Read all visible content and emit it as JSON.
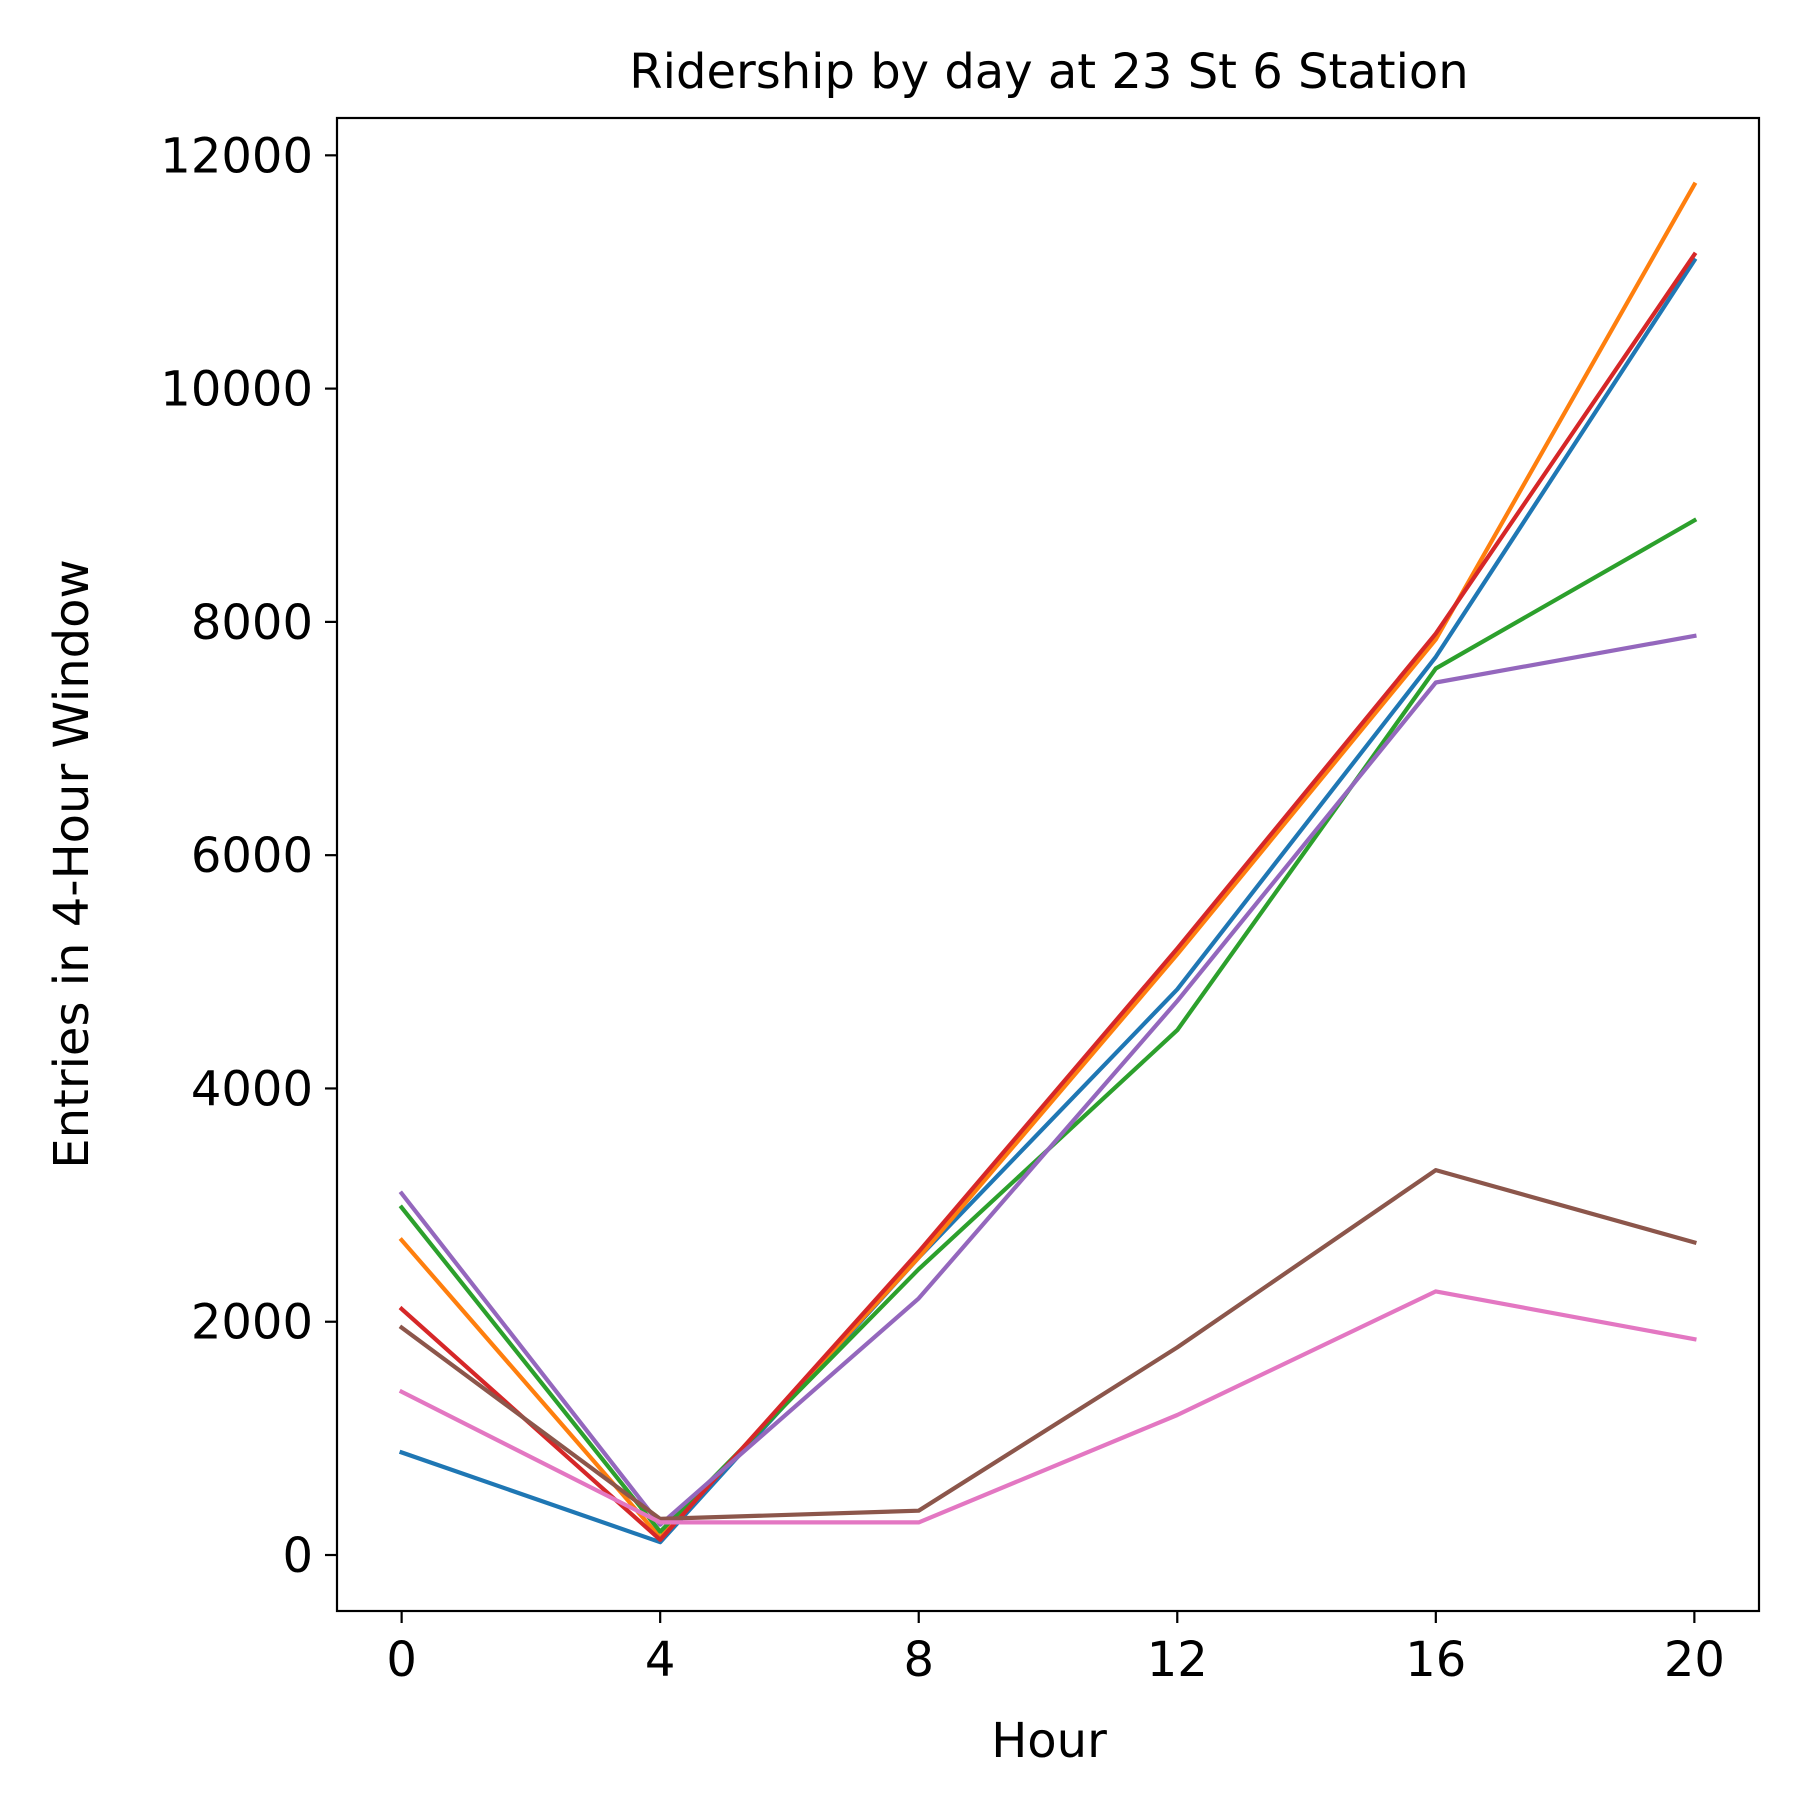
{
  "chart_data": {
    "type": "line",
    "title": "Ridership by day at 23 St 6 Station",
    "xlabel": "Hour",
    "ylabel": "Entries in 4-Hour Window",
    "x": [
      0,
      4,
      8,
      12,
      16,
      20
    ],
    "xlim": [
      -1,
      21
    ],
    "ylim": [
      -480,
      12320
    ],
    "xticks": [
      0,
      4,
      8,
      12,
      16,
      20
    ],
    "yticks": [
      0,
      2000,
      4000,
      6000,
      8000,
      10000,
      12000
    ],
    "grid": false,
    "legend": "none",
    "series": [
      {
        "color": "#1f77b4",
        "values": [
          880,
          110,
          2550,
          4850,
          7700,
          11100
        ]
      },
      {
        "color": "#ff7f0e",
        "values": [
          2700,
          150,
          2550,
          5150,
          7850,
          11750
        ]
      },
      {
        "color": "#2ca02c",
        "values": [
          2980,
          200,
          2450,
          4500,
          7600,
          8870
        ]
      },
      {
        "color": "#d62728",
        "values": [
          2110,
          130,
          2600,
          5200,
          7900,
          11150
        ]
      },
      {
        "color": "#9467bd",
        "values": [
          3100,
          260,
          2200,
          4750,
          7480,
          7880
        ]
      },
      {
        "color": "#8c564b",
        "values": [
          1950,
          310,
          380,
          1780,
          3300,
          2680
        ]
      },
      {
        "color": "#e377c2",
        "values": [
          1400,
          280,
          280,
          1200,
          2260,
          1850
        ]
      }
    ]
  }
}
